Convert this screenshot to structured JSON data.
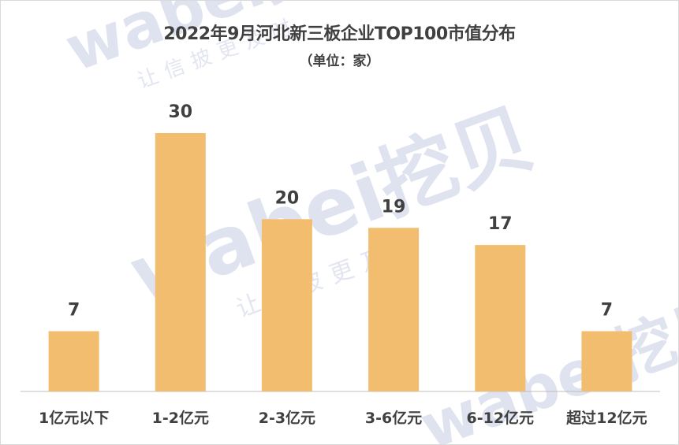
{
  "watermark": {
    "brand": "wabei挖贝",
    "slogan": "让信披更及时"
  },
  "chart_data": {
    "type": "bar",
    "title": "2022年9月河北新三板企业TOP100市值分布",
    "subtitle": "（单位：家）",
    "categories": [
      "1亿元以下",
      "1-2亿元",
      "2-3亿元",
      "3-6亿元",
      "6-12亿元",
      "超过12亿元"
    ],
    "values": [
      7,
      30,
      20,
      19,
      17,
      7
    ],
    "data_labels": [
      "7",
      "30",
      "20",
      "19",
      "17",
      "7"
    ],
    "ylim": [
      0,
      30
    ],
    "grid": false,
    "legend": "none",
    "bar_color": "#f2bd6f"
  }
}
